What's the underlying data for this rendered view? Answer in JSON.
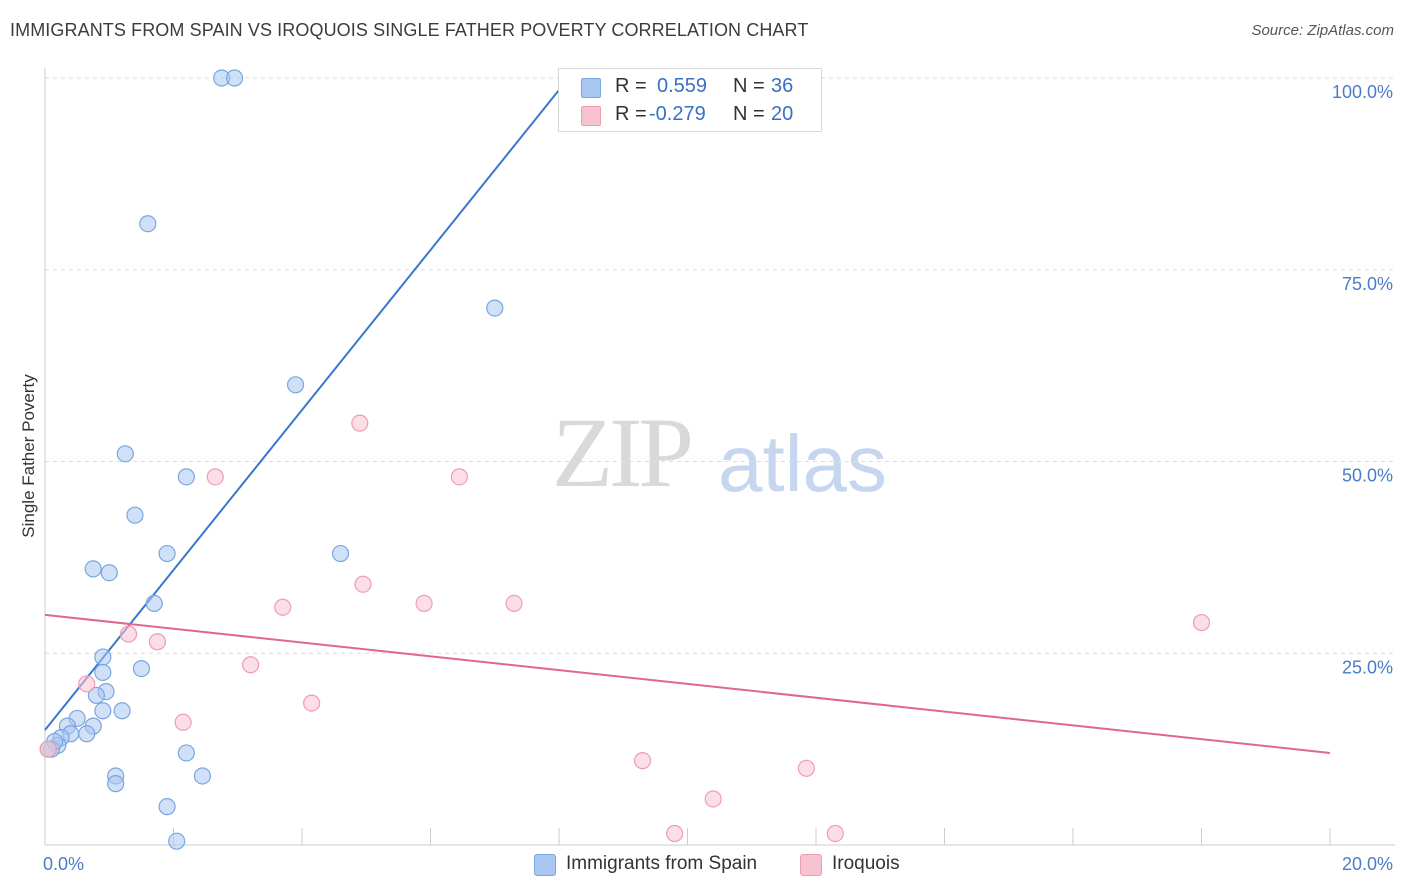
{
  "title": "IMMIGRANTS FROM SPAIN VS IROQUOIS SINGLE FATHER POVERTY CORRELATION CHART",
  "source": "Source: ZipAtlas.com",
  "watermark": {
    "zip": "ZIP",
    "atlas": "atlas"
  },
  "legend": {
    "series1": {
      "r_label": "R =",
      "r_value": "0.559",
      "n_label": "N =",
      "n_value": "36"
    },
    "series2": {
      "r_label": "R =",
      "r_value": "-0.279",
      "n_label": "N =",
      "n_value": "20"
    }
  },
  "colors": {
    "blue_fill": "#a9c7f0",
    "blue_stroke": "#7aa6e0",
    "blue_line": "#3a78d0",
    "pink_fill": "#f7c3d1",
    "pink_stroke": "#ee9db4",
    "pink_line": "#e06690",
    "axis_text": "#4a7cc9",
    "grid": "#dddddd"
  },
  "chart_data": {
    "type": "scatter",
    "title": "IMMIGRANTS FROM SPAIN VS IROQUOIS SINGLE FATHER POVERTY CORRELATION CHART",
    "xlabel": "",
    "ylabel": "Single Father Poverty",
    "xlim": [
      0,
      20
    ],
    "ylim": [
      0,
      100
    ],
    "x_tick_labels": [
      "0.0%",
      "20.0%"
    ],
    "y_tick_labels": [
      "25.0%",
      "50.0%",
      "75.0%",
      "100.0%"
    ],
    "y_ticks": [
      25,
      50,
      75,
      100
    ],
    "grid": true,
    "legend_position": "top-center",
    "series": [
      {
        "name": "Immigrants from Spain",
        "color": "#a9c7f0",
        "points": [
          [
            2.75,
            100
          ],
          [
            2.95,
            100
          ],
          [
            1.6,
            81
          ],
          [
            7.0,
            70
          ],
          [
            3.9,
            60
          ],
          [
            1.25,
            51
          ],
          [
            2.2,
            48
          ],
          [
            1.4,
            43
          ],
          [
            1.9,
            38
          ],
          [
            4.6,
            38
          ],
          [
            0.75,
            36
          ],
          [
            1.0,
            35.5
          ],
          [
            1.7,
            31.5
          ],
          [
            0.9,
            24.5
          ],
          [
            1.5,
            23
          ],
          [
            0.9,
            22.5
          ],
          [
            0.95,
            20
          ],
          [
            0.8,
            19.5
          ],
          [
            0.9,
            17.5
          ],
          [
            1.2,
            17.5
          ],
          [
            0.5,
            16.5
          ],
          [
            0.75,
            15.5
          ],
          [
            0.35,
            15.5
          ],
          [
            0.4,
            14.5
          ],
          [
            0.65,
            14.5
          ],
          [
            0.25,
            14
          ],
          [
            0.2,
            13
          ],
          [
            0.1,
            12.5
          ],
          [
            2.2,
            12
          ],
          [
            1.1,
            9
          ],
          [
            2.45,
            9
          ],
          [
            1.1,
            8
          ],
          [
            1.9,
            5
          ],
          [
            2.05,
            0.5
          ],
          [
            0.15,
            13.5
          ],
          [
            0.05,
            12.5
          ]
        ]
      },
      {
        "name": "Iroquois",
        "color": "#f7c3d1",
        "points": [
          [
            4.9,
            55
          ],
          [
            2.65,
            48
          ],
          [
            6.45,
            48
          ],
          [
            4.95,
            34
          ],
          [
            3.7,
            31
          ],
          [
            5.9,
            31.5
          ],
          [
            7.3,
            31.5
          ],
          [
            18.0,
            29
          ],
          [
            1.3,
            27.5
          ],
          [
            1.75,
            26.5
          ],
          [
            3.2,
            23.5
          ],
          [
            0.65,
            21
          ],
          [
            4.15,
            18.5
          ],
          [
            2.15,
            16
          ],
          [
            9.3,
            11
          ],
          [
            11.85,
            10
          ],
          [
            10.4,
            6
          ],
          [
            9.8,
            1.5
          ],
          [
            12.3,
            1.5
          ],
          [
            0.05,
            12.5
          ]
        ]
      }
    ],
    "trendlines": [
      {
        "series": "Immigrants from Spain",
        "from": [
          0,
          15
        ],
        "to": [
          8.15,
          100
        ]
      },
      {
        "series": "Iroquois",
        "from": [
          0,
          30
        ],
        "to": [
          20,
          12
        ]
      }
    ]
  },
  "bottom_legend": [
    {
      "label": "Immigrants from Spain"
    },
    {
      "label": "Iroquois"
    }
  ]
}
